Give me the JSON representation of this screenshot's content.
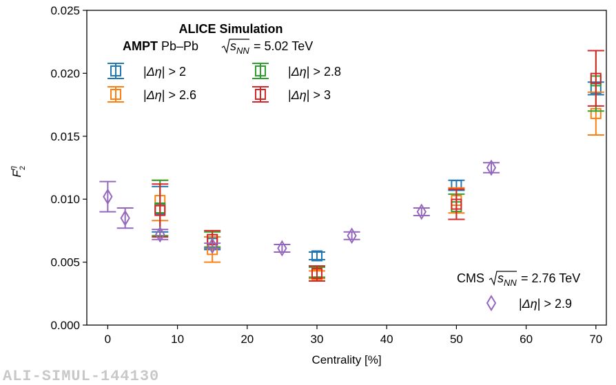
{
  "chart_data": {
    "type": "scatter",
    "xlabel": "Centrality [%]",
    "ylabel": "F",
    "ylabel_sup": "η",
    "ylabel_sub": "2",
    "xlim": [
      -3,
      71.5
    ],
    "ylim": [
      0,
      0.025
    ],
    "xticks": [
      0,
      10,
      20,
      30,
      40,
      50,
      60,
      70
    ],
    "yticks": [
      0.0,
      0.005,
      0.01,
      0.015,
      0.02,
      0.025
    ],
    "ytick_labels": [
      "0.000",
      "0.005",
      "0.010",
      "0.015",
      "0.020",
      "0.025"
    ],
    "xtick_labels": [
      "0",
      "10",
      "20",
      "30",
      "40",
      "50",
      "60",
      "70"
    ],
    "legend_alice": {
      "title": "ALICE Simulation",
      "subtitle_bold": "AMPT",
      "subtitle_text": " Pb–Pb ",
      "subtitle_energy": "= 5.02 TeV",
      "sqrt_label": "s",
      "sqrt_sub": "NN"
    },
    "legend_cms": {
      "title": "CMS",
      "energy": "= 2.76 TeV",
      "sqrt_label": "s",
      "sqrt_sub": "NN"
    },
    "series": [
      {
        "name": "|Δη| > 2",
        "name_left": "|",
        "name_mid": "Δη",
        "name_right": "| > 2",
        "color": "#1f77b4",
        "marker": "square",
        "points": [
          {
            "x": 7.5,
            "y": 0.0092,
            "err": 0.0018
          },
          {
            "x": 15,
            "y": 0.0065,
            "err": 0.0005
          },
          {
            "x": 30,
            "y": 0.0055,
            "err": 0.0003
          },
          {
            "x": 50,
            "y": 0.0111,
            "err": 0.0004
          },
          {
            "x": 70,
            "y": 0.0188,
            "err": 0.0005
          }
        ]
      },
      {
        "name": "|Δη| > 2.6",
        "name_left": "|",
        "name_mid": "Δη",
        "name_right": "| > 2.6",
        "color": "#ff7f0e",
        "marker": "square",
        "points": [
          {
            "x": 7.5,
            "y": 0.0099,
            "err": 0.0016
          },
          {
            "x": 15,
            "y": 0.006,
            "err": 0.001
          },
          {
            "x": 30,
            "y": 0.004,
            "err": 0.0003
          },
          {
            "x": 50,
            "y": 0.0099,
            "err": 0.001
          },
          {
            "x": 70,
            "y": 0.0168,
            "err": 0.0017
          }
        ]
      },
      {
        "name": "|Δη| > 2.8",
        "name_left": "|",
        "name_mid": "Δη",
        "name_right": "| > 2.8",
        "color": "#2ca02c",
        "marker": "square",
        "points": [
          {
            "x": 7.5,
            "y": 0.0093,
            "err": 0.0022
          },
          {
            "x": 15,
            "y": 0.0068,
            "err": 0.0006
          },
          {
            "x": 30,
            "y": 0.0042,
            "err": 0.0004
          },
          {
            "x": 50,
            "y": 0.0094,
            "err": 0.001
          },
          {
            "x": 70,
            "y": 0.0194,
            "err": 0.0024
          }
        ]
      },
      {
        "name": "|Δη| > 3",
        "name_left": "|",
        "name_mid": "Δη",
        "name_right": "| > 3",
        "color": "#d62728",
        "marker": "square",
        "points": [
          {
            "x": 7.5,
            "y": 0.0091,
            "err": 0.0021
          },
          {
            "x": 15,
            "y": 0.0068,
            "err": 0.0007
          },
          {
            "x": 30,
            "y": 0.0041,
            "err": 0.0006
          },
          {
            "x": 50,
            "y": 0.0096,
            "err": 0.0012
          },
          {
            "x": 70,
            "y": 0.0196,
            "err": 0.0022
          }
        ]
      },
      {
        "name": "|Δη| > 2.9",
        "name_left": "|",
        "name_mid": "Δη",
        "name_right": "| > 2.9",
        "color": "#9467bd",
        "marker": "diamond",
        "points": [
          {
            "x": 0,
            "y": 0.0102,
            "err": 0.0012
          },
          {
            "x": 2.5,
            "y": 0.0085,
            "err": 0.0008
          },
          {
            "x": 7.5,
            "y": 0.0072,
            "err": 0.0004
          },
          {
            "x": 15,
            "y": 0.0063,
            "err": 0.0002
          },
          {
            "x": 25,
            "y": 0.0061,
            "err": 0.0003
          },
          {
            "x": 35,
            "y": 0.0071,
            "err": 0.0003
          },
          {
            "x": 45,
            "y": 0.009,
            "err": 0.0003
          },
          {
            "x": 55,
            "y": 0.0125,
            "err": 0.0004
          }
        ]
      }
    ]
  },
  "watermark": "ALI-SIMUL-144130"
}
